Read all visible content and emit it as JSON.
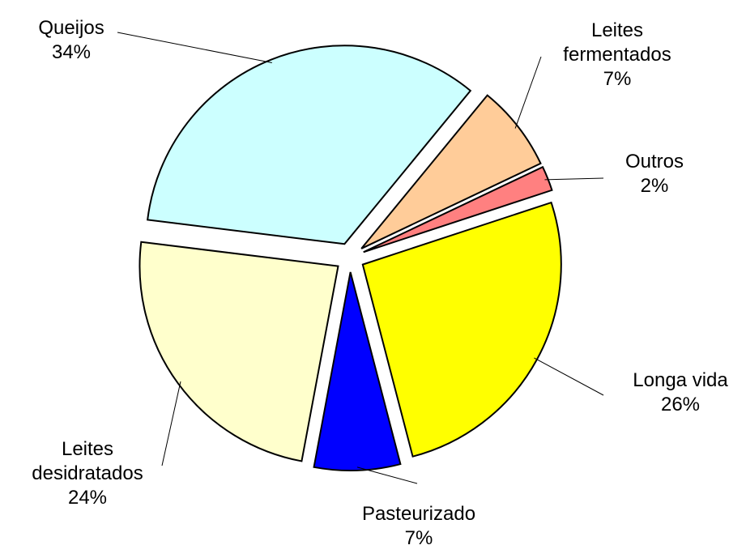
{
  "chart_data": {
    "type": "pie",
    "categories": [
      "Queijos",
      "Leites fermentados",
      "Outros",
      "Longa vida",
      "Pasteurizado",
      "Leites desidratados"
    ],
    "values": [
      34,
      7,
      2,
      26,
      7,
      24
    ],
    "value_labels": [
      "34%",
      "7%",
      "2%",
      "26%",
      "7%",
      "24%"
    ],
    "colors": [
      "#CCFFFF",
      "#FFCC99",
      "#FF8080",
      "#FFFF00",
      "#0000FF",
      "#FFFFCC"
    ]
  }
}
